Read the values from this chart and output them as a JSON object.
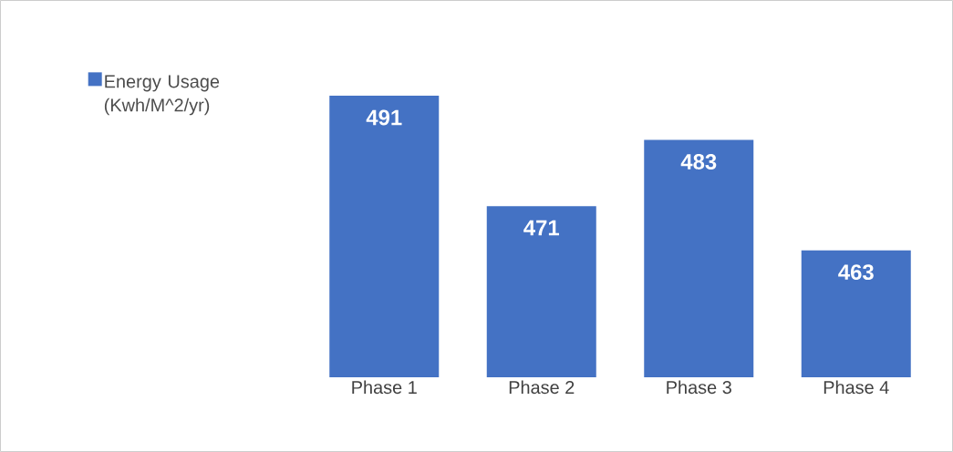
{
  "chart_data": {
    "type": "bar",
    "categories": [
      "Phase 1",
      "Phase 2",
      "Phase 3",
      "Phase 4"
    ],
    "series": [
      {
        "name": "Energy Usage (Kwh/M^2/yr)",
        "color": "#4472c4",
        "values": [
          491,
          471,
          483,
          463
        ]
      }
    ],
    "ylim": [
      440,
      491
    ],
    "data_labels": true,
    "legend": "top left"
  }
}
